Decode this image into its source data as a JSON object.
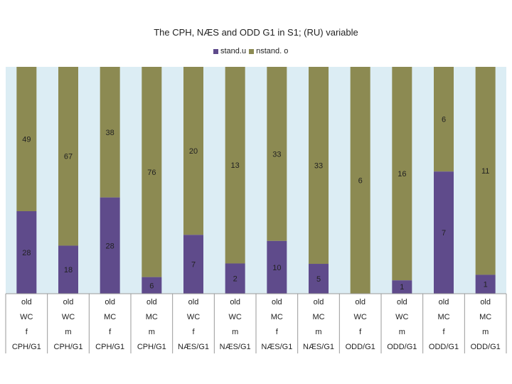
{
  "chart_data": {
    "type": "bar",
    "stacked": "percent",
    "title": "The CPH, NÆS and ODD G1 in S1; (RU) variable",
    "legend_position": "top",
    "colors": {
      "stand_u": "#5f4b8b",
      "nstand_o": "#8c8a52",
      "plot_bg": "#dcedf4",
      "grid": "#9a9a9a"
    },
    "category_rows": [
      [
        "old",
        "old",
        "old",
        "old",
        "old",
        "old",
        "old",
        "old",
        "old",
        "old",
        "old",
        "old"
      ],
      [
        "WC",
        "WC",
        "MC",
        "MC",
        "WC",
        "WC",
        "MC",
        "MC",
        "WC",
        "WC",
        "MC",
        "MC"
      ],
      [
        "f",
        "m",
        "f",
        "m",
        "f",
        "m",
        "f",
        "m",
        "f",
        "m",
        "f",
        "m"
      ],
      [
        "CPH/G1",
        "CPH/G1",
        "CPH/G1",
        "CPH/G1",
        "NÆS/G1",
        "NÆS/G1",
        "NÆS/G1",
        "NÆS/G1",
        "ODD/G1",
        "ODD/G1",
        "ODD/G1",
        "ODD/G1"
      ]
    ],
    "series": [
      {
        "name": "stand.u",
        "values": [
          28,
          18,
          28,
          6,
          7,
          2,
          10,
          5,
          0,
          1,
          7,
          1
        ]
      },
      {
        "name": "nstand. o",
        "values": [
          49,
          67,
          38,
          76,
          20,
          13,
          33,
          33,
          6,
          16,
          6,
          11
        ]
      }
    ],
    "ylim": [
      0,
      100
    ]
  }
}
